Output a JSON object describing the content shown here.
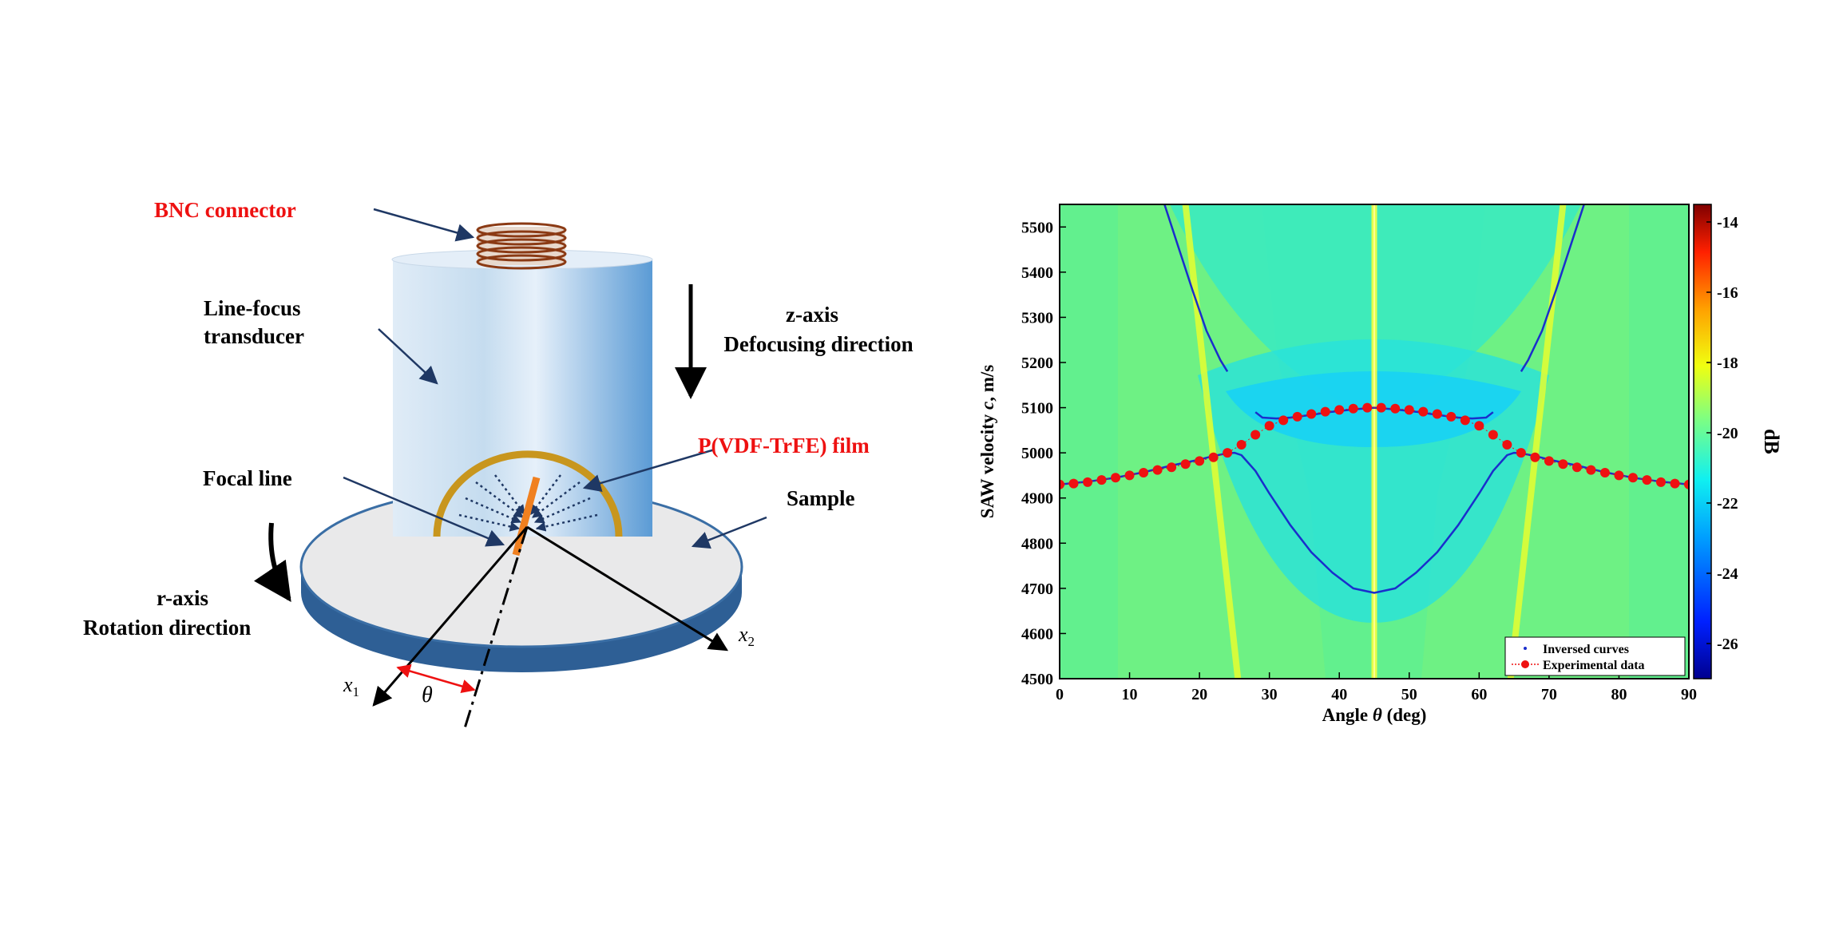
{
  "diagram": {
    "labels": {
      "bnc_connector": "BNC connector",
      "transducer_line1": "Line-focus",
      "transducer_line2": "transducer",
      "z_axis": "z-axis",
      "z_axis_desc": "Defocusing direction",
      "film": "P(VDF-TrFE) film",
      "focal_line": "Focal line",
      "sample": "Sample",
      "r_axis": "r-axis",
      "r_axis_desc": "Rotation direction",
      "x1_letter": "x",
      "x1_sub": "1",
      "x2_letter": "x",
      "x2_sub": "2",
      "theta": "θ"
    },
    "colors": {
      "label_red": "#ee1111",
      "transducer_light": "#dce9f5",
      "transducer_dark": "#5b9bd5",
      "film": "#c8961e",
      "disk_edge": "#3a6ea5",
      "arrow_navy": "#1f3864"
    }
  },
  "chart_data": {
    "type": "heatmap",
    "xlabel_pre": "Angle ",
    "xlabel_sym": "θ",
    "xlabel_post": " (deg)",
    "ylabel_pre": "SAW velocity ",
    "ylabel_sym": "c",
    "ylabel_post": ", m/s",
    "xlim": [
      0,
      90
    ],
    "ylim": [
      4500,
      5550
    ],
    "xticks": [
      0,
      10,
      20,
      30,
      40,
      50,
      60,
      70,
      80,
      90
    ],
    "yticks": [
      4500,
      4600,
      4700,
      4800,
      4900,
      5000,
      5100,
      5200,
      5300,
      5400,
      5500
    ],
    "colorbar": {
      "label": "dB",
      "range": [
        -27,
        -13.5
      ],
      "ticks": [
        -26,
        -24,
        -22,
        -20,
        -18,
        -16,
        -14
      ]
    },
    "legend": {
      "position": "bottom-right",
      "entries": [
        "Inversed curves",
        "Experimental data"
      ]
    },
    "series": [
      {
        "name": "Inversed curves",
        "style": "dotted-line",
        "color": "#1a2ecc",
        "segments": [
          {
            "x": [
              15,
              17,
              19,
              21,
              23,
              24
            ],
            "y": [
              5550,
              5455,
              5360,
              5270,
              5205,
              5180
            ]
          },
          {
            "x": [
              66,
              67,
              69,
              71,
              73,
              75
            ],
            "y": [
              5180,
              5205,
              5270,
              5360,
              5455,
              5550
            ]
          },
          {
            "x": [
              0,
              4,
              8,
              12,
              16,
              20,
              22,
              24,
              25,
              26,
              28,
              30,
              33,
              36,
              39,
              42,
              45,
              48,
              51,
              54,
              57,
              60,
              62,
              64,
              65,
              66,
              68,
              70,
              74,
              78,
              82,
              86,
              90
            ],
            "y": [
              4930,
              4936,
              4945,
              4957,
              4972,
              4985,
              4993,
              4999,
              5000,
              4995,
              4960,
              4910,
              4840,
              4780,
              4735,
              4700,
              4690,
              4700,
              4735,
              4780,
              4840,
              4910,
              4960,
              4995,
              5000,
              4999,
              4993,
              4985,
              4972,
              4957,
              4945,
              4936,
              4930
            ]
          },
          {
            "x": [
              28,
              29,
              31,
              33,
              36,
              39,
              42,
              45,
              48,
              51,
              54,
              57,
              59,
              61,
              62
            ],
            "y": [
              5090,
              5078,
              5076,
              5078,
              5084,
              5091,
              5096,
              5100,
              5096,
              5091,
              5084,
              5078,
              5076,
              5078,
              5090
            ]
          }
        ]
      },
      {
        "name": "Experimental data",
        "style": "red-dots",
        "color": "#ee1111",
        "x": [
          0,
          2,
          4,
          6,
          8,
          10,
          12,
          14,
          16,
          18,
          20,
          22,
          24,
          26,
          28,
          30,
          32,
          34,
          36,
          38,
          40,
          42,
          44,
          46,
          48,
          50,
          52,
          54,
          56,
          58,
          60,
          62,
          64,
          66,
          68,
          70,
          72,
          74,
          76,
          78,
          80,
          82,
          84,
          86,
          88,
          90
        ],
        "y": [
          4930,
          4932,
          4935,
          4940,
          4945,
          4950,
          4956,
          4962,
          4968,
          4975,
          4982,
          4990,
          5000,
          5018,
          5040,
          5060,
          5072,
          5080,
          5086,
          5091,
          5095,
          5098,
          5100,
          5100,
          5098,
          5095,
          5091,
          5086,
          5080,
          5072,
          5060,
          5040,
          5018,
          5000,
          4990,
          4982,
          4975,
          4968,
          4962,
          4956,
          4950,
          4945,
          4940,
          4935,
          4932,
          4930
        ]
      }
    ],
    "background_bands": [
      {
        "kind": "vertical",
        "x": 45
      },
      {
        "kind": "diagonal",
        "x_top": 18,
        "x_bottom": 25.5
      },
      {
        "kind": "diagonal",
        "x_top": 72,
        "x_bottom": 64.5
      }
    ]
  }
}
